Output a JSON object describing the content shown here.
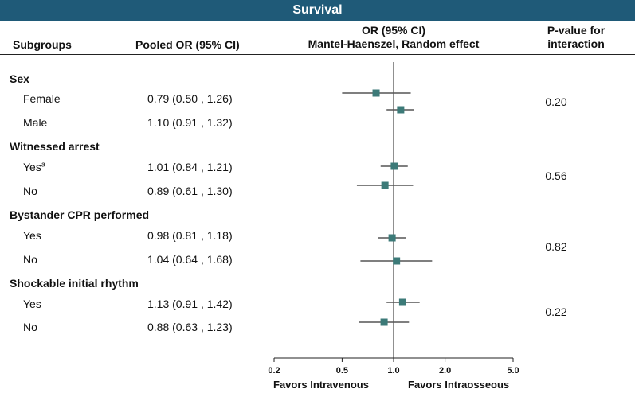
{
  "banner": "Survival",
  "headers": {
    "subgroups": "Subgroups",
    "pooled_or": "Pooled OR (95% CI)",
    "plot_line1": "OR (95% CI)",
    "plot_line2": "Mantel-Haenszel, Random effect",
    "p_line1": "P-value for",
    "p_line2": "interaction"
  },
  "groups": [
    {
      "label": "Sex",
      "p_value": "0.20",
      "rows": [
        {
          "label": "Female",
          "sup": "",
          "or_text": "0.79 (0.50 , 1.26)",
          "or": 0.79,
          "lo": 0.5,
          "hi": 1.26
        },
        {
          "label": "Male",
          "sup": "",
          "or_text": "1.10 (0.91 , 1.32)",
          "or": 1.1,
          "lo": 0.91,
          "hi": 1.32
        }
      ]
    },
    {
      "label": "Witnessed arrest",
      "p_value": "0.56",
      "rows": [
        {
          "label": "Yes",
          "sup": "a",
          "or_text": "1.01 (0.84 , 1.21)",
          "or": 1.01,
          "lo": 0.84,
          "hi": 1.21
        },
        {
          "label": "No",
          "sup": "",
          "or_text": "0.89  (0.61 , 1.30)",
          "or": 0.89,
          "lo": 0.61,
          "hi": 1.3
        }
      ]
    },
    {
      "label": "Bystander CPR performed",
      "p_value": "0.82",
      "rows": [
        {
          "label": "Yes",
          "sup": "",
          "or_text": "0.98 (0.81 , 1.18)",
          "or": 0.98,
          "lo": 0.81,
          "hi": 1.18
        },
        {
          "label": "No",
          "sup": "",
          "or_text": "1.04 (0.64 , 1.68)",
          "or": 1.04,
          "lo": 0.64,
          "hi": 1.68
        }
      ]
    },
    {
      "label": "Shockable initial rhythm",
      "p_value": "0.22",
      "rows": [
        {
          "label": "Yes",
          "sup": "",
          "or_text": "1.13  (0.91 , 1.42)",
          "or": 1.13,
          "lo": 0.91,
          "hi": 1.42
        },
        {
          "label": "No",
          "sup": "",
          "or_text": "0.88 (0.63 , 1.23)",
          "or": 0.88,
          "lo": 0.63,
          "hi": 1.23
        }
      ]
    }
  ],
  "axis": {
    "scale": "log",
    "ticks": [
      0.2,
      0.5,
      1.0,
      2.0,
      5.0
    ],
    "tick_labels": [
      "0.2",
      "0.5",
      "1.0",
      "2.0",
      "5.0"
    ],
    "xlim": [
      0.2,
      5.0
    ],
    "reference": 1.0
  },
  "favors_left": "Favors Intravenous",
  "favors_right": "Favors Intraosseous",
  "colors": {
    "banner": "#1f5a78",
    "marker": "#3c7a78",
    "ci_line": "#555555"
  },
  "chart_data": {
    "type": "forest",
    "title": "Survival",
    "x_scale": "log",
    "xlim": [
      0.2,
      5.0
    ],
    "reference_line": 1.0,
    "xlabel_left": "Favors Intravenous",
    "xlabel_right": "Favors Intraosseous",
    "series": [
      {
        "name": "Female",
        "or": 0.79,
        "lo": 0.5,
        "hi": 1.26
      },
      {
        "name": "Male",
        "or": 1.1,
        "lo": 0.91,
        "hi": 1.32
      },
      {
        "name": "Witnessed arrest: Yes",
        "or": 1.01,
        "lo": 0.84,
        "hi": 1.21
      },
      {
        "name": "Witnessed arrest: No",
        "or": 0.89,
        "lo": 0.61,
        "hi": 1.3
      },
      {
        "name": "Bystander CPR: Yes",
        "or": 0.98,
        "lo": 0.81,
        "hi": 1.18
      },
      {
        "name": "Bystander CPR: No",
        "or": 1.04,
        "lo": 0.64,
        "hi": 1.68
      },
      {
        "name": "Shockable rhythm: Yes",
        "or": 1.13,
        "lo": 0.91,
        "hi": 1.42
      },
      {
        "name": "Shockable rhythm: No",
        "or": 0.88,
        "lo": 0.63,
        "hi": 1.23
      }
    ]
  }
}
